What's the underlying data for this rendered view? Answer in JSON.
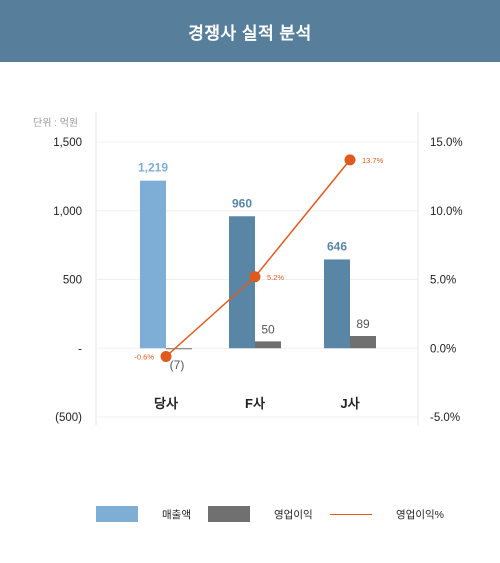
{
  "header": {
    "title": "경쟁사 실적 분석"
  },
  "chart_data": {
    "type": "bar",
    "categories": [
      "당사",
      "F사",
      "J사"
    ],
    "series": [
      {
        "name": "매출액",
        "kind": "bar",
        "axis": "left",
        "color": "#7eaed6",
        "values": [
          1219,
          960,
          646
        ],
        "labels": [
          "1,219",
          "960",
          "646"
        ]
      },
      {
        "name": "영업이익",
        "kind": "bar",
        "axis": "left",
        "color": "#707070",
        "values": [
          -7,
          50,
          89
        ],
        "labels": [
          "(7)",
          "50",
          "89"
        ]
      },
      {
        "name": "영업이익%",
        "kind": "line",
        "axis": "right",
        "color": "#e05a1e",
        "values": [
          -0.6,
          5.2,
          13.7
        ],
        "labels": [
          "-0.6%",
          "5.2%",
          "13.7%"
        ]
      }
    ],
    "revenue_bar_colors": [
      "#7eaed6",
      "#5a86a6",
      "#5a86a6"
    ],
    "unit_label": "단위 : 억원",
    "y_left": {
      "ylim": [
        -500,
        1500
      ],
      "ticks": [
        1500,
        1000,
        500,
        0,
        -500
      ],
      "tick_labels": [
        "1,500",
        "1,000",
        "500",
        "-",
        "(500)"
      ]
    },
    "y_right": {
      "ylim": [
        -5,
        15
      ],
      "ticks": [
        15,
        10,
        5,
        0,
        -5
      ],
      "tick_labels": [
        "15.0%",
        "10.0%",
        "5.0%",
        "0.0%",
        "-5.0%"
      ]
    },
    "grid": true,
    "legend_position": "bottom"
  }
}
